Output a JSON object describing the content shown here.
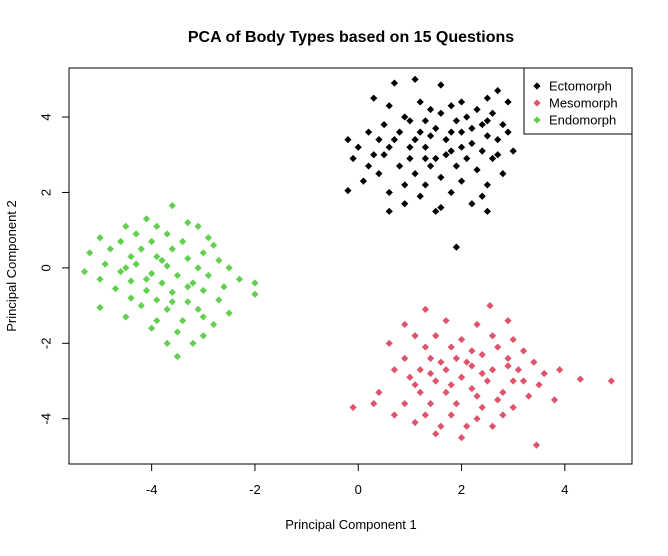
{
  "chart_data": {
    "type": "scatter",
    "title": "PCA of Body Types based on 15 Questions",
    "xlabel": "Principal Component 1",
    "ylabel": "Principal Component 2",
    "xlim": [
      -5.6,
      5.3
    ],
    "ylim": [
      -5.2,
      5.3
    ],
    "xticks": [
      -4,
      -2,
      0,
      2,
      4
    ],
    "yticks": [
      -4,
      -2,
      0,
      2,
      4
    ],
    "grid": false,
    "legend_position": "top-right",
    "series": [
      {
        "name": "Ectomorph",
        "color": "#000000",
        "points": [
          [
            0.7,
            4.9
          ],
          [
            1.1,
            5.0
          ],
          [
            1.6,
            4.85
          ],
          [
            2.7,
            4.7
          ],
          [
            0.3,
            4.5
          ],
          [
            1.2,
            4.4
          ],
          [
            2.0,
            4.4
          ],
          [
            2.5,
            4.5
          ],
          [
            2.9,
            4.4
          ],
          [
            0.6,
            4.3
          ],
          [
            1.4,
            4.2
          ],
          [
            1.8,
            4.3
          ],
          [
            2.3,
            4.2
          ],
          [
            0.9,
            4.0
          ],
          [
            1.6,
            4.1
          ],
          [
            2.1,
            4.0
          ],
          [
            2.6,
            4.1
          ],
          [
            0.5,
            3.8
          ],
          [
            1.0,
            3.9
          ],
          [
            1.3,
            3.9
          ],
          [
            1.9,
            3.9
          ],
          [
            2.4,
            3.8
          ],
          [
            2.8,
            3.8
          ],
          [
            0.2,
            3.6
          ],
          [
            0.8,
            3.6
          ],
          [
            1.5,
            3.7
          ],
          [
            2.0,
            3.6
          ],
          [
            2.5,
            3.5
          ],
          [
            2.9,
            3.6
          ],
          [
            -0.2,
            3.4
          ],
          [
            0.4,
            3.4
          ],
          [
            1.1,
            3.4
          ],
          [
            1.7,
            3.4
          ],
          [
            2.2,
            3.3
          ],
          [
            2.7,
            3.4
          ],
          [
            0.0,
            3.2
          ],
          [
            0.6,
            3.2
          ],
          [
            1.3,
            3.2
          ],
          [
            1.8,
            3.1
          ],
          [
            2.4,
            3.1
          ],
          [
            3.0,
            3.1
          ],
          [
            -0.1,
            2.9
          ],
          [
            0.5,
            3.0
          ],
          [
            1.0,
            2.9
          ],
          [
            1.5,
            2.9
          ],
          [
            2.1,
            2.9
          ],
          [
            2.6,
            2.9
          ],
          [
            0.2,
            2.7
          ],
          [
            0.8,
            2.7
          ],
          [
            1.4,
            2.7
          ],
          [
            1.9,
            2.7
          ],
          [
            2.3,
            2.6
          ],
          [
            0.4,
            2.5
          ],
          [
            1.1,
            2.5
          ],
          [
            1.6,
            2.4
          ],
          [
            2.8,
            2.5
          ],
          [
            0.1,
            2.3
          ],
          [
            0.9,
            2.2
          ],
          [
            1.3,
            2.2
          ],
          [
            2.0,
            2.3
          ],
          [
            2.5,
            2.2
          ],
          [
            0.6,
            2.0
          ],
          [
            1.2,
            1.9
          ],
          [
            1.8,
            2.0
          ],
          [
            2.4,
            1.9
          ],
          [
            -0.2,
            2.05
          ],
          [
            0.9,
            1.7
          ],
          [
            1.6,
            1.6
          ],
          [
            2.2,
            1.7
          ],
          [
            0.6,
            1.5
          ],
          [
            1.5,
            1.5
          ],
          [
            2.5,
            1.5
          ],
          [
            1.9,
            0.55
          ],
          [
            1.2,
            3.6
          ],
          [
            2.2,
            3.7
          ],
          [
            1.7,
            3.0
          ],
          [
            0.3,
            3.0
          ],
          [
            2.7,
            3.0
          ],
          [
            1.0,
            3.2
          ],
          [
            2.0,
            3.2
          ],
          [
            1.4,
            3.5
          ],
          [
            2.5,
            3.9
          ],
          [
            0.7,
            3.4
          ],
          [
            1.8,
            3.6
          ],
          [
            1.3,
            2.9
          ]
        ]
      },
      {
        "name": "Mesomorph",
        "color": "#DF536B",
        "points": [
          [
            1.3,
            -1.1
          ],
          [
            2.55,
            -1.0
          ],
          [
            0.9,
            -1.5
          ],
          [
            1.7,
            -1.4
          ],
          [
            2.3,
            -1.5
          ],
          [
            2.9,
            -1.4
          ],
          [
            1.1,
            -1.8
          ],
          [
            1.5,
            -1.8
          ],
          [
            2.0,
            -1.9
          ],
          [
            2.6,
            -1.8
          ],
          [
            3.0,
            -1.9
          ],
          [
            0.6,
            -2.0
          ],
          [
            1.3,
            -2.1
          ],
          [
            1.8,
            -2.1
          ],
          [
            2.2,
            -2.2
          ],
          [
            2.7,
            -2.1
          ],
          [
            3.2,
            -2.2
          ],
          [
            0.9,
            -2.4
          ],
          [
            1.4,
            -2.4
          ],
          [
            1.9,
            -2.4
          ],
          [
            2.4,
            -2.3
          ],
          [
            2.9,
            -2.4
          ],
          [
            3.4,
            -2.5
          ],
          [
            0.7,
            -2.7
          ],
          [
            1.2,
            -2.7
          ],
          [
            1.7,
            -2.7
          ],
          [
            2.2,
            -2.6
          ],
          [
            2.6,
            -2.7
          ],
          [
            3.1,
            -2.7
          ],
          [
            3.6,
            -2.8
          ],
          [
            3.9,
            -2.7
          ],
          [
            1.0,
            -2.9
          ],
          [
            1.5,
            -3.0
          ],
          [
            2.0,
            -2.9
          ],
          [
            2.5,
            -3.0
          ],
          [
            3.0,
            -3.0
          ],
          [
            3.5,
            -3.1
          ],
          [
            4.3,
            -2.95
          ],
          [
            4.9,
            -3.0
          ],
          [
            0.4,
            -3.3
          ],
          [
            1.2,
            -3.3
          ],
          [
            1.7,
            -3.3
          ],
          [
            2.2,
            -3.2
          ],
          [
            2.8,
            -3.3
          ],
          [
            3.3,
            -3.4
          ],
          [
            3.8,
            -3.5
          ],
          [
            0.3,
            -3.6
          ],
          [
            0.9,
            -3.6
          ],
          [
            1.4,
            -3.6
          ],
          [
            1.9,
            -3.6
          ],
          [
            2.4,
            -3.7
          ],
          [
            3.0,
            -3.7
          ],
          [
            -0.1,
            -3.7
          ],
          [
            0.7,
            -3.9
          ],
          [
            1.3,
            -3.9
          ],
          [
            1.8,
            -3.9
          ],
          [
            2.3,
            -4.0
          ],
          [
            2.8,
            -3.9
          ],
          [
            1.1,
            -4.1
          ],
          [
            1.6,
            -4.2
          ],
          [
            2.1,
            -4.2
          ],
          [
            2.6,
            -4.2
          ],
          [
            1.5,
            -4.4
          ],
          [
            2.0,
            -4.5
          ],
          [
            3.45,
            -4.7
          ],
          [
            2.1,
            -2.5
          ],
          [
            1.6,
            -2.5
          ],
          [
            2.4,
            -2.8
          ],
          [
            1.8,
            -3.1
          ],
          [
            2.7,
            -3.5
          ],
          [
            1.1,
            -3.1
          ],
          [
            2.9,
            -2.6
          ],
          [
            3.2,
            -3.0
          ],
          [
            2.3,
            -3.4
          ],
          [
            1.4,
            -2.8
          ]
        ]
      },
      {
        "name": "Endomorph",
        "color": "#61D04F",
        "points": [
          [
            -3.6,
            1.65
          ],
          [
            -4.1,
            1.3
          ],
          [
            -3.3,
            1.2
          ],
          [
            -4.5,
            1.1
          ],
          [
            -3.9,
            1.1
          ],
          [
            -3.1,
            1.1
          ],
          [
            -4.3,
            0.9
          ],
          [
            -3.7,
            0.9
          ],
          [
            -2.9,
            0.8
          ],
          [
            -5.0,
            0.8
          ],
          [
            -4.6,
            0.7
          ],
          [
            -4.0,
            0.7
          ],
          [
            -3.4,
            0.7
          ],
          [
            -2.8,
            0.6
          ],
          [
            -4.8,
            0.5
          ],
          [
            -4.2,
            0.5
          ],
          [
            -3.6,
            0.5
          ],
          [
            -3.0,
            0.4
          ],
          [
            -5.2,
            0.4
          ],
          [
            -4.4,
            0.3
          ],
          [
            -3.9,
            0.3
          ],
          [
            -3.3,
            0.25
          ],
          [
            -2.7,
            0.2
          ],
          [
            -4.9,
            0.1
          ],
          [
            -4.3,
            0.1
          ],
          [
            -3.7,
            0.05
          ],
          [
            -3.1,
            0.0
          ],
          [
            -2.5,
            0.0
          ],
          [
            -5.3,
            -0.1
          ],
          [
            -4.6,
            -0.1
          ],
          [
            -4.0,
            -0.15
          ],
          [
            -3.5,
            -0.2
          ],
          [
            -2.9,
            -0.2
          ],
          [
            -2.3,
            -0.3
          ],
          [
            -5.0,
            -0.3
          ],
          [
            -4.4,
            -0.35
          ],
          [
            -3.8,
            -0.4
          ],
          [
            -3.2,
            -0.4
          ],
          [
            -2.6,
            -0.5
          ],
          [
            -2.0,
            -0.4
          ],
          [
            -4.7,
            -0.55
          ],
          [
            -4.1,
            -0.6
          ],
          [
            -3.6,
            -0.65
          ],
          [
            -3.0,
            -0.6
          ],
          [
            -2.0,
            -0.7
          ],
          [
            -4.4,
            -0.8
          ],
          [
            -3.9,
            -0.85
          ],
          [
            -3.3,
            -0.9
          ],
          [
            -2.7,
            -0.85
          ],
          [
            -5.0,
            -1.05
          ],
          [
            -4.2,
            -1.0
          ],
          [
            -3.7,
            -1.1
          ],
          [
            -3.1,
            -1.1
          ],
          [
            -2.5,
            -1.2
          ],
          [
            -4.5,
            -1.3
          ],
          [
            -3.9,
            -1.4
          ],
          [
            -3.4,
            -1.4
          ],
          [
            -2.8,
            -1.5
          ],
          [
            -4.0,
            -1.6
          ],
          [
            -3.5,
            -1.7
          ],
          [
            -3.0,
            -1.8
          ],
          [
            -3.7,
            -2.0
          ],
          [
            -3.2,
            -2.0
          ],
          [
            -3.5,
            -2.35
          ],
          [
            -3.8,
            0.2
          ],
          [
            -3.3,
            -0.5
          ],
          [
            -4.1,
            -0.3
          ],
          [
            -3.0,
            -1.3
          ],
          [
            -3.6,
            -0.9
          ],
          [
            -4.5,
            0.0
          ]
        ]
      }
    ]
  }
}
